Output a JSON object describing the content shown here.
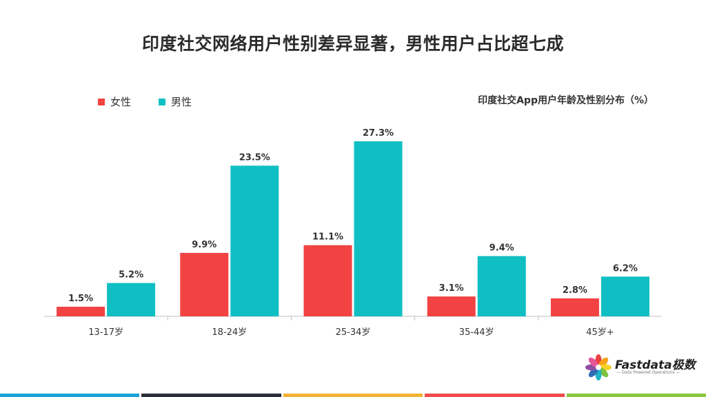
{
  "title": "印度社交网络用户性别差异显著，男性用户占比超七成",
  "subtitle": "印度社交App用户年龄及性别分布（%）",
  "legend": [
    {
      "label": "女性",
      "color": "#f24242"
    },
    {
      "label": "男性",
      "color": "#10bfc3"
    }
  ],
  "chart_data": {
    "type": "bar",
    "categories": [
      "13-17岁",
      "18-24岁",
      "25-34岁",
      "35-44岁",
      "45岁+"
    ],
    "series": [
      {
        "name": "女性",
        "values": [
          1.5,
          9.9,
          11.1,
          3.1,
          2.8
        ],
        "labels": [
          "1.5%",
          "9.9%",
          "11.1%",
          "3.1%",
          "2.8%"
        ],
        "color": "#f24242"
      },
      {
        "name": "男性",
        "values": [
          5.2,
          23.5,
          27.3,
          9.4,
          6.2
        ],
        "labels": [
          "5.2%",
          "23.5%",
          "27.3%",
          "9.4%",
          "6.2%"
        ],
        "color": "#10bfc3"
      }
    ],
    "ylim": [
      0,
      27.3
    ],
    "grid": false,
    "legend_position": "top-left"
  },
  "logo": {
    "text": "Fastdata极数",
    "tagline": "— Data Powered Operations —",
    "petal_colors": [
      "#e8403f",
      "#f7a21b",
      "#f6d22b",
      "#7cc242",
      "#1fb3c8",
      "#2f6db5",
      "#8e4fa3",
      "#e45796"
    ]
  },
  "bottom_bar_colors": [
    "#1aa3d8",
    "#2b2f3a",
    "#f2b233",
    "#f04b4b",
    "#8cc63f"
  ]
}
